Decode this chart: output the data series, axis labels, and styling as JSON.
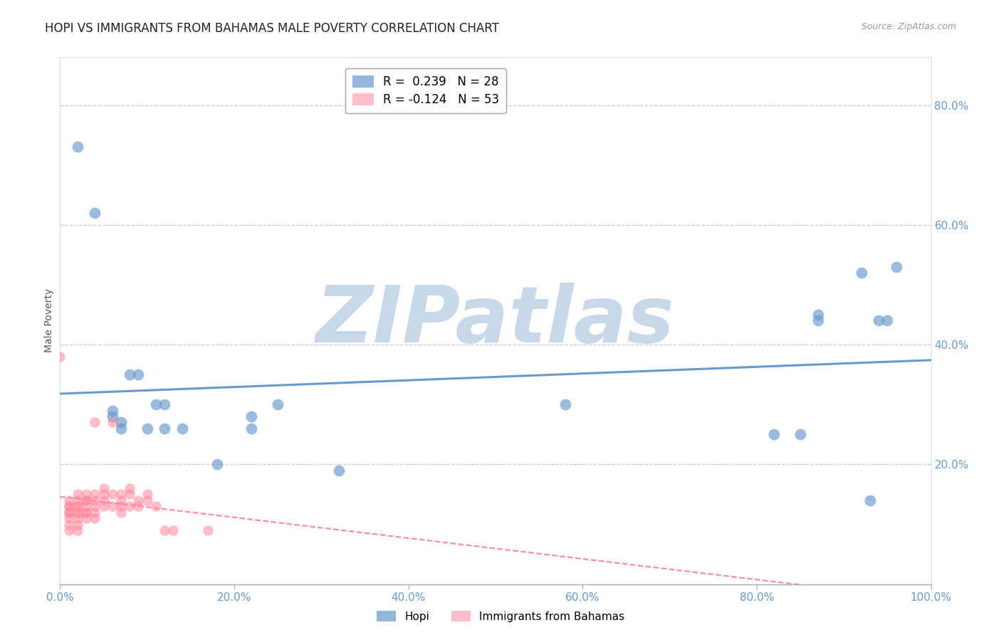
{
  "title": "HOPI VS IMMIGRANTS FROM BAHAMAS MALE POVERTY CORRELATION CHART",
  "source": "Source: ZipAtlas.com",
  "ylabel": "Male Poverty",
  "xlim": [
    0.0,
    1.0
  ],
  "ylim": [
    0.0,
    0.88
  ],
  "xticks": [
    0.0,
    0.2,
    0.4,
    0.6,
    0.8,
    1.0
  ],
  "yticks": [
    0.2,
    0.4,
    0.6,
    0.8
  ],
  "ytick_labels": [
    "20.0%",
    "40.0%",
    "60.0%",
    "80.0%"
  ],
  "xtick_labels": [
    "0.0%",
    "20.0%",
    "40.0%",
    "60.0%",
    "80.0%",
    "100.0%"
  ],
  "hopi_R": 0.239,
  "hopi_N": 28,
  "bahamas_R": -0.124,
  "bahamas_N": 53,
  "hopi_color": "#6699cc",
  "bahamas_color": "#ff8899",
  "hopi_x": [
    0.02,
    0.04,
    0.06,
    0.06,
    0.07,
    0.07,
    0.08,
    0.09,
    0.1,
    0.11,
    0.12,
    0.12,
    0.14,
    0.18,
    0.22,
    0.22,
    0.25,
    0.32,
    0.58,
    0.82,
    0.85,
    0.87,
    0.87,
    0.92,
    0.93,
    0.94,
    0.95,
    0.96
  ],
  "hopi_y": [
    0.73,
    0.62,
    0.29,
    0.28,
    0.27,
    0.26,
    0.35,
    0.35,
    0.26,
    0.3,
    0.26,
    0.3,
    0.26,
    0.2,
    0.26,
    0.28,
    0.3,
    0.19,
    0.3,
    0.25,
    0.25,
    0.45,
    0.44,
    0.52,
    0.14,
    0.44,
    0.44,
    0.53
  ],
  "bahamas_x": [
    0.0,
    0.01,
    0.01,
    0.01,
    0.01,
    0.01,
    0.01,
    0.01,
    0.01,
    0.02,
    0.02,
    0.02,
    0.02,
    0.02,
    0.02,
    0.02,
    0.02,
    0.02,
    0.03,
    0.03,
    0.03,
    0.03,
    0.03,
    0.03,
    0.03,
    0.04,
    0.04,
    0.04,
    0.04,
    0.04,
    0.04,
    0.05,
    0.05,
    0.05,
    0.05,
    0.06,
    0.06,
    0.06,
    0.07,
    0.07,
    0.07,
    0.07,
    0.08,
    0.08,
    0.08,
    0.09,
    0.09,
    0.1,
    0.1,
    0.11,
    0.12,
    0.13,
    0.17
  ],
  "bahamas_y": [
    0.38,
    0.14,
    0.13,
    0.13,
    0.12,
    0.12,
    0.11,
    0.1,
    0.09,
    0.15,
    0.14,
    0.13,
    0.13,
    0.12,
    0.12,
    0.11,
    0.1,
    0.09,
    0.15,
    0.14,
    0.14,
    0.13,
    0.12,
    0.12,
    0.11,
    0.27,
    0.15,
    0.14,
    0.13,
    0.12,
    0.11,
    0.16,
    0.15,
    0.14,
    0.13,
    0.27,
    0.15,
    0.13,
    0.15,
    0.14,
    0.13,
    0.12,
    0.16,
    0.15,
    0.13,
    0.14,
    0.13,
    0.15,
    0.14,
    0.13,
    0.09,
    0.09,
    0.09
  ],
  "grid_color": "#cccccc",
  "background_color": "#ffffff",
  "watermark_text": "ZIPatlas",
  "watermark_color": "#c8d8e8",
  "title_fontsize": 12,
  "axis_label_fontsize": 10,
  "tick_fontsize": 11,
  "tick_color": "#6699cc",
  "border_color": "#dddddd"
}
